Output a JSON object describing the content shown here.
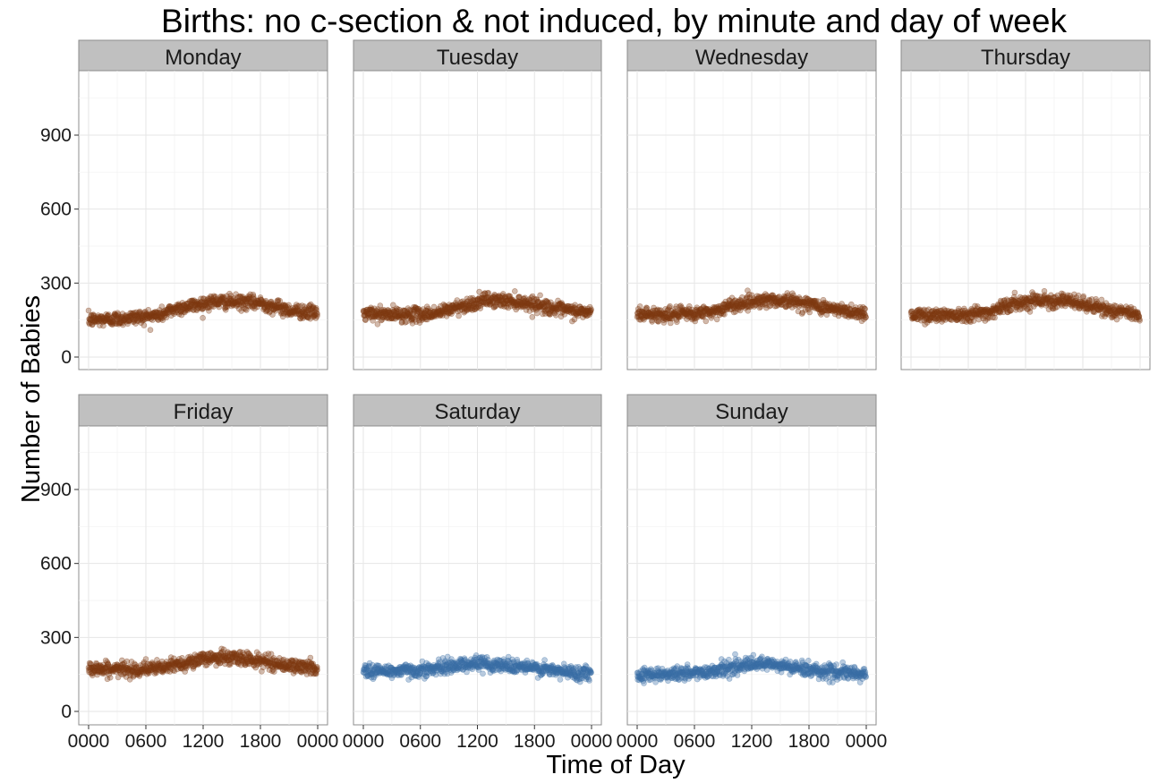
{
  "chart_data": {
    "type": "scatter",
    "title": "Births: no c-section & not induced, by minute and day of week",
    "xlabel": "Time of Day",
    "ylabel": "Number of Babies",
    "x_unit": "minutes since midnight (0–1440)",
    "xlim": [
      0,
      1440
    ],
    "ylim": [
      0,
      1150
    ],
    "x_ticks": [
      0,
      360,
      720,
      1080,
      1440
    ],
    "x_tick_labels": [
      "0000",
      "0600",
      "1200",
      "1800",
      "0000"
    ],
    "y_ticks": [
      0,
      300,
      600,
      900
    ],
    "y_tick_labels": [
      "0",
      "300",
      "600",
      "900"
    ],
    "grid": true,
    "point_alpha": 0.35,
    "colors": {
      "weekday": "#7f3a12",
      "weekend": "#3a6ea5"
    },
    "panels": [
      {
        "name": "Monday",
        "color_group": "weekday",
        "trend": [
          [
            0,
            150
          ],
          [
            180,
            155
          ],
          [
            360,
            165
          ],
          [
            450,
            170
          ],
          [
            540,
            195
          ],
          [
            660,
            210
          ],
          [
            780,
            225
          ],
          [
            960,
            222
          ],
          [
            1080,
            220
          ],
          [
            1260,
            190
          ],
          [
            1440,
            178
          ]
        ]
      },
      {
        "name": "Tuesday",
        "color_group": "weekday",
        "trend": [
          [
            0,
            175
          ],
          [
            180,
            172
          ],
          [
            360,
            172
          ],
          [
            480,
            180
          ],
          [
            600,
            205
          ],
          [
            720,
            220
          ],
          [
            780,
            232
          ],
          [
            960,
            225
          ],
          [
            1080,
            215
          ],
          [
            1260,
            190
          ],
          [
            1440,
            180
          ]
        ]
      },
      {
        "name": "Wednesday",
        "color_group": "weekday",
        "trend": [
          [
            0,
            175
          ],
          [
            180,
            172
          ],
          [
            360,
            175
          ],
          [
            480,
            185
          ],
          [
            600,
            210
          ],
          [
            720,
            225
          ],
          [
            780,
            232
          ],
          [
            960,
            228
          ],
          [
            1080,
            215
          ],
          [
            1260,
            190
          ],
          [
            1440,
            178
          ]
        ]
      },
      {
        "name": "Thursday",
        "color_group": "weekday",
        "trend": [
          [
            0,
            170
          ],
          [
            180,
            170
          ],
          [
            360,
            175
          ],
          [
            480,
            180
          ],
          [
            600,
            210
          ],
          [
            720,
            225
          ],
          [
            780,
            233
          ],
          [
            960,
            228
          ],
          [
            1080,
            215
          ],
          [
            1260,
            188
          ],
          [
            1440,
            172
          ]
        ]
      },
      {
        "name": "Friday",
        "color_group": "weekday",
        "trend": [
          [
            0,
            175
          ],
          [
            180,
            170
          ],
          [
            360,
            172
          ],
          [
            480,
            178
          ],
          [
            600,
            198
          ],
          [
            720,
            210
          ],
          [
            780,
            220
          ],
          [
            960,
            215
          ],
          [
            1080,
            205
          ],
          [
            1260,
            185
          ],
          [
            1440,
            175
          ]
        ]
      },
      {
        "name": "Saturday",
        "color_group": "weekend",
        "trend": [
          [
            0,
            165
          ],
          [
            180,
            163
          ],
          [
            360,
            168
          ],
          [
            480,
            175
          ],
          [
            600,
            190
          ],
          [
            720,
            195
          ],
          [
            840,
            190
          ],
          [
            960,
            185
          ],
          [
            1080,
            175
          ],
          [
            1260,
            160
          ],
          [
            1440,
            155
          ]
        ]
      },
      {
        "name": "Sunday",
        "color_group": "weekend",
        "trend": [
          [
            0,
            150
          ],
          [
            180,
            152
          ],
          [
            360,
            155
          ],
          [
            480,
            165
          ],
          [
            600,
            180
          ],
          [
            720,
            190
          ],
          [
            840,
            190
          ],
          [
            960,
            180
          ],
          [
            1080,
            170
          ],
          [
            1260,
            158
          ],
          [
            1440,
            150
          ]
        ]
      }
    ]
  }
}
